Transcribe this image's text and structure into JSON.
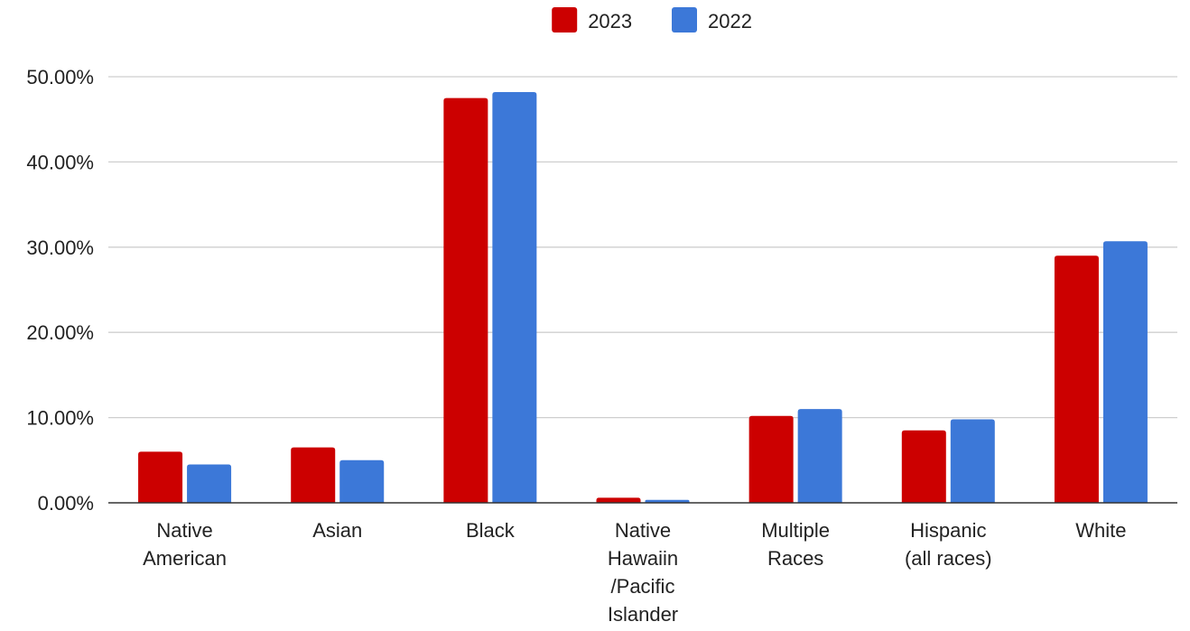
{
  "chart_data": {
    "type": "bar",
    "categories": [
      [
        "Native",
        "American"
      ],
      [
        "Asian"
      ],
      [
        "Black"
      ],
      [
        "Native",
        "Hawaiin",
        "/Pacific",
        "Islander"
      ],
      [
        "Multiple",
        "Races"
      ],
      [
        "Hispanic",
        "(all races)"
      ],
      [
        "White"
      ]
    ],
    "series": [
      {
        "name": "2023",
        "color": "#cc0000",
        "values": [
          6.0,
          6.5,
          47.5,
          0.6,
          10.2,
          8.5,
          29.0
        ]
      },
      {
        "name": "2022",
        "color": "#3c78d8",
        "values": [
          4.5,
          5.0,
          48.2,
          0.35,
          11.0,
          9.8,
          30.7
        ]
      }
    ],
    "yticks": [
      "0.00%",
      "10.00%",
      "20.00%",
      "30.00%",
      "40.00%",
      "50.00%"
    ],
    "ylim": [
      0,
      50
    ],
    "legend_position": "top-center",
    "grid": true
  }
}
